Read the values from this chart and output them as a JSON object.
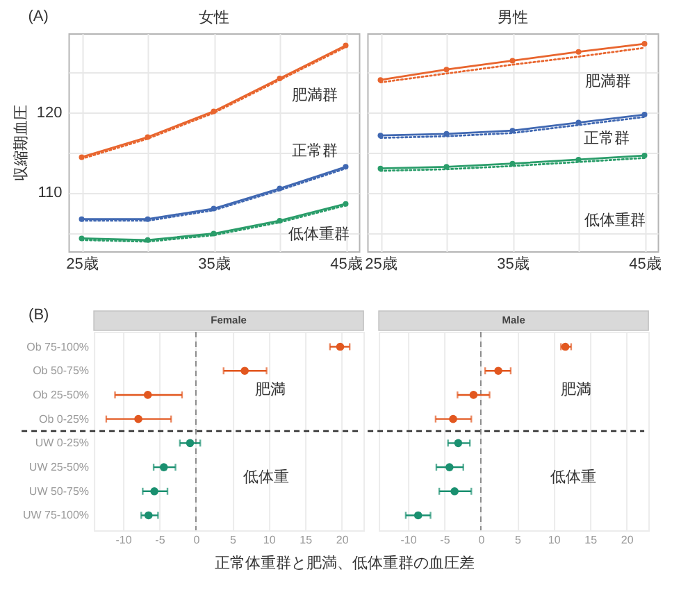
{
  "chart_data": [
    {
      "type": "line",
      "title": "女性",
      "ylabel": "収縮期血圧",
      "annotations": [
        "(A)",
        "肥満群",
        "正常群",
        "低体重群"
      ],
      "x": [
        25,
        30,
        35,
        40,
        45
      ],
      "series": [
        {
          "color": "#e8652e",
          "values": [
            114.2,
            116.7,
            119.9,
            124.0,
            128.1
          ],
          "marker": "none",
          "line_style": "dotted"
        },
        {
          "color": "#e8652e",
          "values": [
            114.4,
            116.9,
            120.1,
            124.2,
            128.3
          ],
          "marker": "circle",
          "line_style": "solid"
        },
        {
          "color": "#4068b2",
          "values": [
            106.5,
            106.5,
            107.8,
            110.3,
            113.0
          ],
          "marker": "none",
          "line_style": "dotted"
        },
        {
          "color": "#4068b2",
          "values": [
            106.7,
            106.7,
            108.0,
            110.5,
            113.2
          ],
          "marker": "circle",
          "line_style": "solid"
        },
        {
          "color": "#2a9d6a",
          "values": [
            104.1,
            103.9,
            104.7,
            106.3,
            108.4
          ],
          "marker": "none",
          "line_style": "dotted"
        },
        {
          "color": "#2a9d6a",
          "values": [
            104.3,
            104.1,
            104.9,
            106.5,
            108.6
          ],
          "marker": "circle",
          "line_style": "solid"
        }
      ],
      "xlim": [
        24,
        46
      ],
      "ylim": [
        102.7,
        129.8
      ],
      "xticks": [
        {
          "value": 25,
          "label": "25歳"
        },
        {
          "value": 30,
          "label": null
        },
        {
          "value": 35,
          "label": "35歳"
        },
        {
          "value": 40,
          "label": null
        },
        {
          "value": 45,
          "label": "45歳"
        }
      ],
      "yticks": [
        {
          "value": 105,
          "label": null
        },
        110,
        {
          "value": 115,
          "label": null
        },
        120,
        {
          "value": 125,
          "label": null
        }
      ],
      "grid": true
    },
    {
      "type": "line",
      "title": "男性",
      "annotations": [
        "肥満群",
        "正常群",
        "低体重群"
      ],
      "x": [
        25,
        30,
        35,
        40,
        45
      ],
      "series": [
        {
          "color": "#e8652e",
          "values": [
            123.7,
            124.8,
            125.9,
            126.9,
            128.0
          ],
          "marker": "none",
          "line_style": "dotted"
        },
        {
          "color": "#e8652e",
          "values": [
            124.0,
            125.3,
            126.4,
            127.5,
            128.5
          ],
          "marker": "circle",
          "line_style": "solid"
        },
        {
          "color": "#4068b2",
          "values": [
            116.8,
            117.0,
            117.4,
            118.4,
            119.4
          ],
          "marker": "none",
          "line_style": "dotted"
        },
        {
          "color": "#4068b2",
          "values": [
            117.1,
            117.3,
            117.7,
            118.7,
            119.7
          ],
          "marker": "circle",
          "line_style": "solid"
        },
        {
          "color": "#2a9d6a",
          "values": [
            112.7,
            112.9,
            113.3,
            113.8,
            114.3
          ],
          "marker": "none",
          "line_style": "dotted"
        },
        {
          "color": "#2a9d6a",
          "values": [
            113.0,
            113.2,
            113.6,
            114.1,
            114.6
          ],
          "marker": "circle",
          "line_style": "solid"
        }
      ],
      "xlim": [
        24,
        46
      ],
      "ylim": [
        102.7,
        129.8
      ],
      "xticks": [
        {
          "value": 25,
          "label": "25歳"
        },
        {
          "value": 30,
          "label": null
        },
        {
          "value": 35,
          "label": "35歳"
        },
        {
          "value": 40,
          "label": null
        },
        {
          "value": 45,
          "label": "45歳"
        }
      ],
      "yticks": [
        {
          "value": 105,
          "label": null
        },
        110,
        {
          "value": 115,
          "label": null
        },
        120,
        {
          "value": 125,
          "label": null
        }
      ],
      "grid": true,
      "tick_labels": "x"
    },
    {
      "type": "scatter",
      "title": "Female",
      "xlabel": "正常体重群と肥満、低体重群の血圧差",
      "annotations": [
        "(B)",
        "肥満",
        "低体重"
      ],
      "orientation": "horizontal",
      "categories": [
        "Ob 75-100%",
        "Ob 50-75%",
        "Ob 25-50%",
        "Ob 0-25%",
        "UW 0-25%",
        "UW 25-50%",
        "UW 50-75%",
        "UW 75-100%"
      ],
      "values": [
        19.8,
        6.7,
        -6.6,
        -7.9,
        -0.8,
        -4.4,
        -5.7,
        -6.5
      ],
      "errors": [
        [
          18.4,
          21.1
        ],
        [
          3.8,
          9.7
        ],
        [
          -11.1,
          -1.9
        ],
        [
          -12.3,
          -3.4
        ],
        [
          -2.2,
          0.6
        ],
        [
          -5.8,
          -2.8
        ],
        [
          -7.3,
          -3.9
        ],
        [
          -7.5,
          -5.2
        ]
      ],
      "colors": [
        "#e2571f",
        "#e2571f",
        "#e2571f",
        "#e2571f",
        "#1a9070",
        "#1a9070",
        "#1a9070",
        "#1a9070"
      ],
      "marker": "circle",
      "xlim": [
        -14,
        23
      ],
      "xticks": [
        -10,
        -5,
        0,
        5,
        10,
        15,
        20
      ],
      "grid": "x",
      "ref_lines": [
        {
          "axis": "x",
          "value": 0,
          "line_style": "dashed",
          "color": "#8a8a8a"
        }
      ]
    },
    {
      "type": "scatter",
      "title": "Male",
      "annotations": [
        "肥満",
        "低体重"
      ],
      "orientation": "horizontal",
      "values": [
        11.6,
        2.4,
        -1.0,
        -3.8,
        -3.1,
        -4.3,
        -3.6,
        -8.6
      ],
      "errors": [
        [
          11.0,
          12.4
        ],
        [
          0.6,
          4.1
        ],
        [
          -3.2,
          1.2
        ],
        [
          -6.2,
          -1.3
        ],
        [
          -4.5,
          -1.5
        ],
        [
          -6.1,
          -2.4
        ],
        [
          -5.7,
          -1.3
        ],
        [
          -10.3,
          -6.9
        ]
      ],
      "colors": [
        "#e2571f",
        "#e2571f",
        "#e2571f",
        "#e2571f",
        "#1a9070",
        "#1a9070",
        "#1a9070",
        "#1a9070"
      ],
      "marker": "circle",
      "xlim": [
        -14,
        23
      ],
      "xticks": [
        -10,
        -5,
        0,
        5,
        10,
        15,
        20
      ],
      "grid": "x",
      "tick_labels": "x",
      "ref_lines": [
        {
          "axis": "x",
          "value": 0,
          "line_style": "dashed",
          "color": "#8a8a8a"
        }
      ]
    }
  ]
}
